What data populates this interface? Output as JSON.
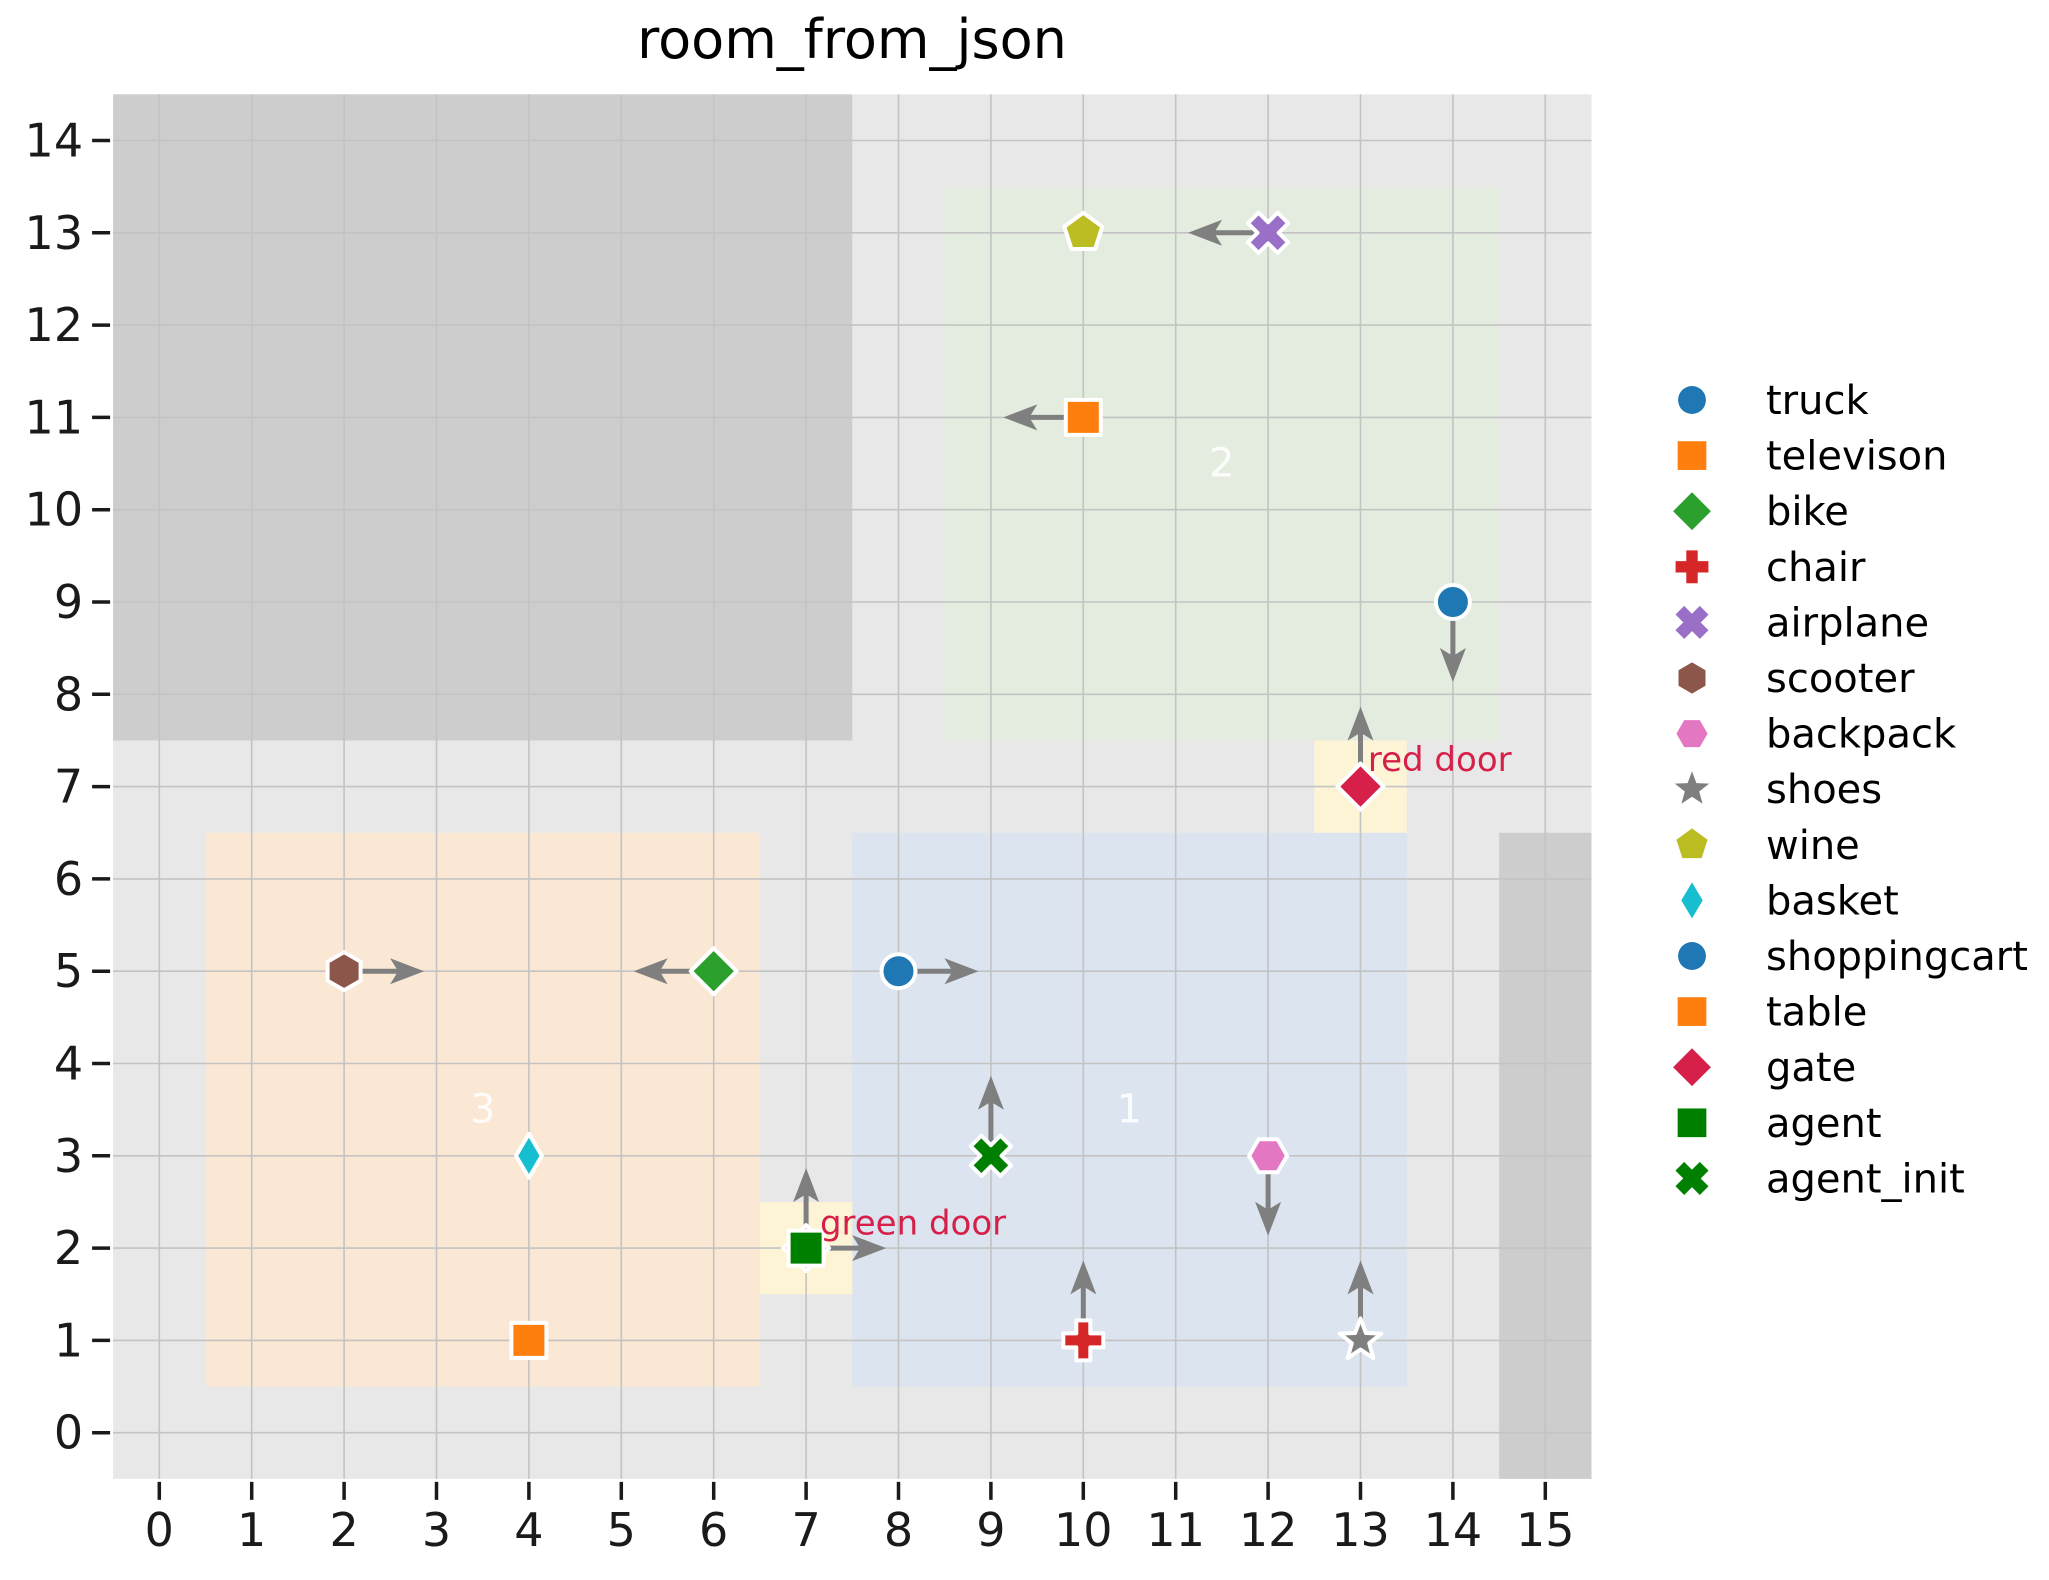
{
  "figure": {
    "title": "room_from_json"
  },
  "colors": {
    "page_bg": "#ffffff",
    "plot_bg": "#e8e8e8",
    "blocked_gray": "#cdcdcd",
    "room1_blue": "#dbe4ef",
    "room2_green": "#e3ecdf",
    "room3_orange": "#fae8d5",
    "door_yellow": "#fdf4d6",
    "gridline": "#c3c3c3",
    "arrow_gray": "#7f7f7f",
    "tick_text": "#1a1a1a",
    "door_text": "#d6204a",
    "room_label_text": "#ffffff"
  },
  "chart_data": {
    "type": "scatter",
    "title": "room_from_json",
    "x_range": [
      -0.5,
      15.5
    ],
    "y_range": [
      -0.5,
      14.5
    ],
    "x_ticks": [
      0,
      1,
      2,
      3,
      4,
      5,
      6,
      7,
      8,
      9,
      10,
      11,
      12,
      13,
      14,
      15
    ],
    "y_ticks": [
      0,
      1,
      2,
      3,
      4,
      5,
      6,
      7,
      8,
      9,
      10,
      11,
      12,
      13,
      14
    ],
    "grid": true,
    "legend_position": "right-outside",
    "regions": [
      {
        "name": "plot-background",
        "x0": -0.5,
        "y0": -0.5,
        "x1": 15.5,
        "y1": 14.5,
        "color_key": "plot_bg"
      },
      {
        "name": "blocked-top-left",
        "x0": -0.5,
        "y0": 7.5,
        "x1": 7.5,
        "y1": 14.5,
        "color_key": "blocked_gray"
      },
      {
        "name": "blocked-right-strip",
        "x0": 14.5,
        "y0": -0.5,
        "x1": 15.5,
        "y1": 6.5,
        "color_key": "blocked_gray"
      },
      {
        "name": "room-2-area",
        "x0": 8.5,
        "y0": 7.5,
        "x1": 14.5,
        "y1": 13.5,
        "color_key": "room2_green"
      },
      {
        "name": "room-3-area",
        "x0": 0.5,
        "y0": 0.5,
        "x1": 6.5,
        "y1": 6.5,
        "color_key": "room3_orange"
      },
      {
        "name": "room-1-area",
        "x0": 7.5,
        "y0": 0.5,
        "x1": 13.5,
        "y1": 6.5,
        "color_key": "room1_blue"
      },
      {
        "name": "red-door-zone",
        "x0": 12.5,
        "y0": 6.5,
        "x1": 13.5,
        "y1": 7.5,
        "color_key": "door_yellow"
      },
      {
        "name": "green-door-zone",
        "x0": 6.5,
        "y0": 1.5,
        "x1": 7.5,
        "y1": 2.5,
        "color_key": "door_yellow"
      }
    ],
    "room_labels": [
      {
        "text": "1",
        "x": 10.5,
        "y": 3.5
      },
      {
        "text": "2",
        "x": 11.5,
        "y": 10.5
      },
      {
        "text": "3",
        "x": 3.5,
        "y": 3.5
      }
    ],
    "door_labels": [
      {
        "text": "red door",
        "x": 13.08,
        "y": 7.3
      },
      {
        "text": "green door",
        "x": 7.15,
        "y": 2.28
      }
    ],
    "points": [
      {
        "name": "wine",
        "x": 10,
        "y": 13,
        "marker": "pentagon",
        "color": "#bcbd22",
        "arrow": null
      },
      {
        "name": "airplane",
        "x": 12,
        "y": 13,
        "marker": "x",
        "color": "#9a6fc8",
        "arrow": "left"
      },
      {
        "name": "televison",
        "x": 10,
        "y": 11,
        "marker": "square",
        "color": "#ff7f0e",
        "arrow": "left"
      },
      {
        "name": "truck",
        "x": 14,
        "y": 9,
        "marker": "circle",
        "color": "#1f77b4",
        "arrow": "down"
      },
      {
        "name": "gate-red",
        "x": 13,
        "y": 7,
        "marker": "diamond",
        "color": "#d6204a",
        "arrow": "up"
      },
      {
        "name": "scooter",
        "x": 2,
        "y": 5,
        "marker": "hexagon-v",
        "color": "#8c564b",
        "arrow": "right"
      },
      {
        "name": "bike",
        "x": 6,
        "y": 5,
        "marker": "diamond",
        "color": "#2ca02c",
        "arrow": "left"
      },
      {
        "name": "shoppingcart",
        "x": 8,
        "y": 5,
        "marker": "circle",
        "color": "#1f77b4",
        "arrow": "right"
      },
      {
        "name": "basket",
        "x": 4,
        "y": 3,
        "marker": "thin-diamond",
        "color": "#17becf",
        "arrow": null
      },
      {
        "name": "agent_init",
        "x": 9,
        "y": 3,
        "marker": "x",
        "color": "#008000",
        "arrow": "up"
      },
      {
        "name": "backpack",
        "x": 12,
        "y": 3,
        "marker": "hexagon-h",
        "color": "#e377c2",
        "arrow": "down"
      },
      {
        "name": "gate-green",
        "x": 7,
        "y": 2,
        "marker": "diamond",
        "color": "#d6204a",
        "arrow": "up"
      },
      {
        "name": "agent",
        "x": 7,
        "y": 2,
        "marker": "square",
        "color": "#008000",
        "arrow": "right"
      },
      {
        "name": "table",
        "x": 4,
        "y": 1,
        "marker": "square",
        "color": "#ff7f0e",
        "arrow": null
      },
      {
        "name": "chair",
        "x": 10,
        "y": 1,
        "marker": "plus",
        "color": "#d62728",
        "arrow": "up"
      },
      {
        "name": "shoes",
        "x": 13,
        "y": 1,
        "marker": "star",
        "color": "#7f7f7f",
        "arrow": "up"
      }
    ],
    "legend": [
      {
        "label": "truck",
        "marker": "circle",
        "color": "#1f77b4"
      },
      {
        "label": "televison",
        "marker": "square",
        "color": "#ff7f0e"
      },
      {
        "label": "bike",
        "marker": "diamond",
        "color": "#2ca02c"
      },
      {
        "label": "chair",
        "marker": "plus",
        "color": "#d62728"
      },
      {
        "label": "airplane",
        "marker": "x",
        "color": "#9a6fc8"
      },
      {
        "label": "scooter",
        "marker": "hexagon-v",
        "color": "#8c564b"
      },
      {
        "label": "backpack",
        "marker": "hexagon-h",
        "color": "#e377c2"
      },
      {
        "label": "shoes",
        "marker": "star",
        "color": "#7f7f7f"
      },
      {
        "label": "wine",
        "marker": "pentagon",
        "color": "#bcbd22"
      },
      {
        "label": "basket",
        "marker": "thin-diamond",
        "color": "#17becf"
      },
      {
        "label": "shoppingcart",
        "marker": "circle",
        "color": "#1f77b4"
      },
      {
        "label": "table",
        "marker": "square",
        "color": "#ff7f0e"
      },
      {
        "label": "gate",
        "marker": "diamond",
        "color": "#d6204a"
      },
      {
        "label": "agent",
        "marker": "square",
        "color": "#008000"
      },
      {
        "label": "agent_init",
        "marker": "x",
        "color": "#008000"
      }
    ]
  }
}
